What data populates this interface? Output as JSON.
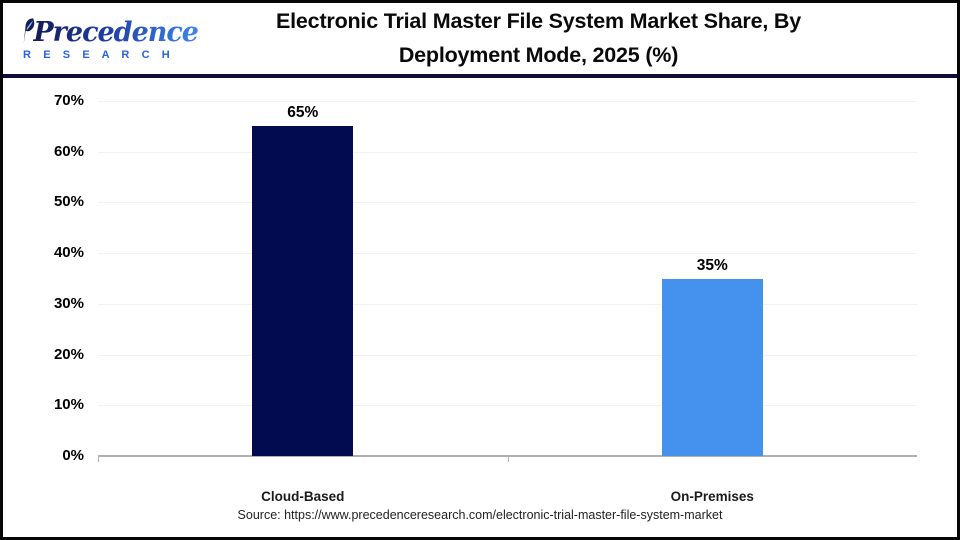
{
  "brand": {
    "name": "Precedence",
    "subname": "R E S E A R C H",
    "logo_navy": "#141b55",
    "logo_blue": "#3f86e8"
  },
  "header": {
    "title_line1": "Electronic Trial Master File System Market Share, By",
    "title_line2": "Deployment Mode, 2025 (%)"
  },
  "source": {
    "text": "Source: https://www.precedenceresearch.com/electronic-trial-master-file-system-market"
  },
  "chart_data": {
    "type": "bar",
    "title": "Electronic Trial Master File System Market Share, By Deployment Mode, 2025 (%)",
    "categories": [
      "Cloud-Based",
      "On-Premises"
    ],
    "values": [
      65,
      35
    ],
    "value_labels": [
      "65%",
      "35%"
    ],
    "bar_colors": [
      "#020a50",
      "#4591ee"
    ],
    "xlabel": "",
    "ylabel": "",
    "ylim": [
      0,
      70
    ],
    "ytick_step": 10,
    "ytick_suffix": "%",
    "grid": true,
    "legend": "none"
  }
}
